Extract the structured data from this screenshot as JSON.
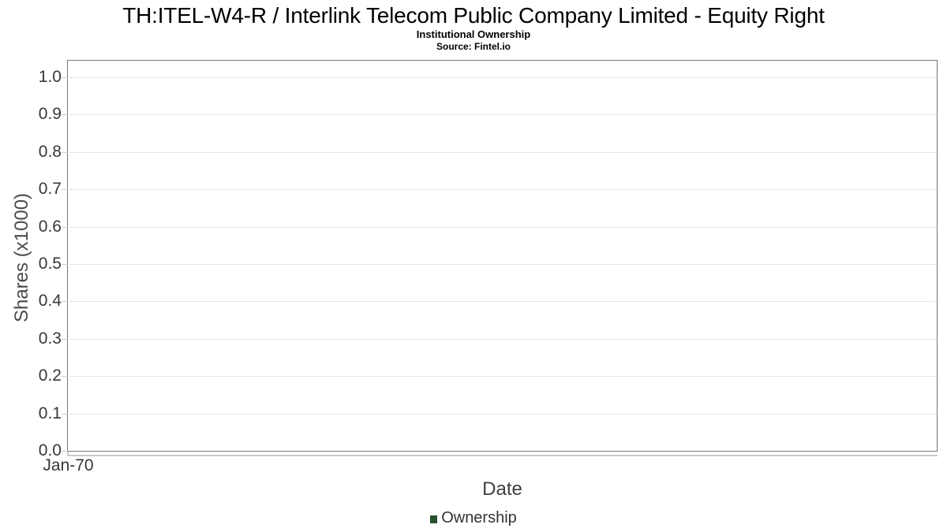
{
  "chart_data": {
    "type": "line",
    "title": "TH:ITEL-W4-R / Interlink Telecom Public Company Limited - Equity Right",
    "subtitle": "Institutional Ownership",
    "source": "Source: Fintel.io",
    "xlabel": "Date",
    "ylabel": "Shares (x1000)",
    "x_ticks": [
      "Jan-70"
    ],
    "y_ticks": [
      "1.0",
      "0.9",
      "0.8",
      "0.7",
      "0.6",
      "0.5",
      "0.4",
      "0.3",
      "0.2",
      "0.1",
      "0.0"
    ],
    "ylim": [
      0.0,
      1.044
    ],
    "grid": true,
    "legend_position": "bottom",
    "series": [
      {
        "name": "Ownership",
        "color": "#26522e",
        "values": []
      }
    ]
  },
  "colors": {
    "legend_marker": "#26522e",
    "plot_border": "#777777",
    "gridline": "#e6e6e6",
    "tick": "#cccccc",
    "title_text": "#000000",
    "axis_text": "#383838"
  }
}
